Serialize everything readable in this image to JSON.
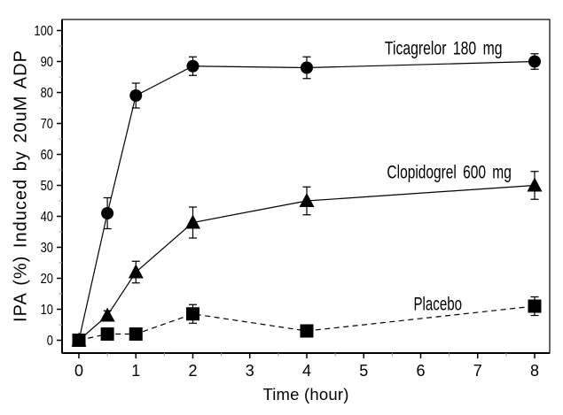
{
  "figure": {
    "background": "#ffffff",
    "ink": "#000000",
    "minor_tick_color": "#999999"
  },
  "chart_data": {
    "type": "line",
    "title": "",
    "xlabel": "Time (hour)",
    "ylabel": "IPA (%) Induced by 20uM ADP",
    "xlim": [
      -0.3,
      8.27
    ],
    "ylim": [
      -4.3,
      103.6
    ],
    "x_ticks": [
      0,
      1,
      2,
      3,
      4,
      5,
      6,
      7,
      8
    ],
    "x_minor_ticks": [
      0.5,
      1.5,
      2.5,
      3.5,
      4.5,
      5.5,
      6.5,
      7.5
    ],
    "y_ticks": [
      0,
      10,
      20,
      30,
      40,
      50,
      60,
      70,
      80,
      90,
      100
    ],
    "y_minor_ticks": [
      5,
      15,
      25,
      35,
      45,
      55,
      65,
      75,
      85,
      95
    ],
    "grid": false,
    "legend_position": "inline-annotations",
    "series": [
      {
        "name": "Ticagrelor 180 mg",
        "marker": "circle",
        "line": "solid",
        "x": [
          0,
          0.5,
          1,
          2,
          4,
          8
        ],
        "y": [
          0,
          41,
          79,
          88.5,
          88,
          90
        ],
        "yerr": [
          0,
          5,
          4,
          3,
          3.5,
          2.5
        ],
        "label": {
          "text": "Ticagrelor 180 mg",
          "x": 6.4,
          "y": 94
        }
      },
      {
        "name": "Clopidogrel 600 mg",
        "marker": "triangle",
        "line": "solid",
        "x": [
          0,
          0.5,
          1,
          2,
          4,
          8
        ],
        "y": [
          0,
          8,
          22,
          38,
          45,
          50
        ],
        "yerr": [
          0,
          1.5,
          3.5,
          5,
          4.5,
          4.5
        ],
        "label": {
          "text": "Clopidogrel 600 mg",
          "x": 6.5,
          "y": 54
        }
      },
      {
        "name": "Placebo",
        "marker": "square",
        "line": "dashed",
        "x": [
          0,
          0.5,
          1,
          2,
          4,
          8
        ],
        "y": [
          0,
          2,
          2,
          8.5,
          3,
          11
        ],
        "yerr": [
          0,
          0,
          0,
          3,
          0,
          3
        ],
        "label": {
          "text": "Placebo",
          "x": 6.3,
          "y": 11.5
        }
      }
    ]
  }
}
